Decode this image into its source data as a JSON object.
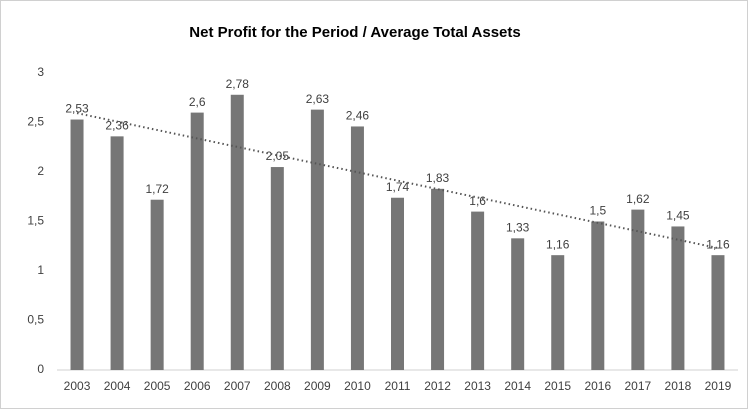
{
  "chart_data": {
    "type": "bar",
    "title": "Net Profit for the Period / Average Total Assets",
    "categories": [
      "2003",
      "2004",
      "2005",
      "2006",
      "2007",
      "2008",
      "2009",
      "2010",
      "2011",
      "2012",
      "2013",
      "2014",
      "2015",
      "2016",
      "2017",
      "2018",
      "2019"
    ],
    "values": [
      2.53,
      2.36,
      1.72,
      2.6,
      2.78,
      2.05,
      2.63,
      2.46,
      1.74,
      1.83,
      1.6,
      1.33,
      1.16,
      1.5,
      1.62,
      1.45,
      1.16
    ],
    "value_labels": [
      "2,53",
      "2,36",
      "1,72",
      "2,6",
      "2,78",
      "2,05",
      "2,63",
      "2,46",
      "1,74",
      "1,83",
      "1,6",
      "1,33",
      "1,16",
      "1,5",
      "1,62",
      "1,45",
      "1,16"
    ],
    "color": "#767676",
    "ylim": [
      0,
      3
    ],
    "yticks": [
      0,
      {
        "value": 0.5,
        "label": "0,5"
      },
      1,
      {
        "value": 1.5,
        "label": "1,5"
      },
      2,
      {
        "value": 2.5,
        "label": "2,5"
      },
      3
    ],
    "grid": false,
    "trendline": "linear"
  }
}
